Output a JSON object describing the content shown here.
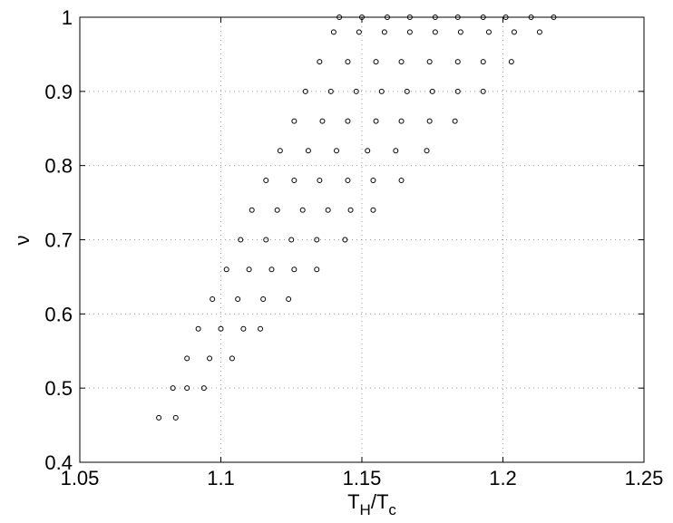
{
  "chart_data": {
    "type": "scatter",
    "xlabel": [
      "T",
      "H",
      "/T",
      "c"
    ],
    "ylabel": "ν",
    "xlim": [
      1.05,
      1.25
    ],
    "ylim": [
      0.4,
      1
    ],
    "xticks": [
      1.05,
      1.1,
      1.15,
      1.2,
      1.25
    ],
    "yticks": [
      0.4,
      0.5,
      0.6,
      0.7,
      0.8,
      0.9,
      1
    ],
    "grid": true,
    "color": "#000000",
    "x": [
      1.078,
      1.084,
      1.083,
      1.088,
      1.094,
      1.088,
      1.096,
      1.104,
      1.092,
      1.1,
      1.108,
      1.114,
      1.097,
      1.106,
      1.115,
      1.124,
      1.102,
      1.11,
      1.118,
      1.126,
      1.134,
      1.107,
      1.116,
      1.125,
      1.134,
      1.144,
      1.111,
      1.12,
      1.129,
      1.138,
      1.146,
      1.154,
      1.116,
      1.126,
      1.135,
      1.145,
      1.154,
      1.164,
      1.121,
      1.131,
      1.141,
      1.152,
      1.162,
      1.173,
      1.126,
      1.136,
      1.145,
      1.155,
      1.164,
      1.174,
      1.183,
      1.13,
      1.139,
      1.148,
      1.157,
      1.166,
      1.175,
      1.184,
      1.193,
      1.135,
      1.145,
      1.155,
      1.164,
      1.174,
      1.184,
      1.193,
      1.203,
      1.14,
      1.149,
      1.158,
      1.167,
      1.176,
      1.185,
      1.195,
      1.204,
      1.213,
      1.142,
      1.15,
      1.159,
      1.167,
      1.176,
      1.184,
      1.193,
      1.201,
      1.21,
      1.218
    ],
    "values": [
      0.46,
      0.46,
      0.5,
      0.5,
      0.5,
      0.54,
      0.54,
      0.54,
      0.58,
      0.58,
      0.58,
      0.58,
      0.62,
      0.62,
      0.62,
      0.62,
      0.66,
      0.66,
      0.66,
      0.66,
      0.66,
      0.7,
      0.7,
      0.7,
      0.7,
      0.7,
      0.74,
      0.74,
      0.74,
      0.74,
      0.74,
      0.74,
      0.78,
      0.78,
      0.78,
      0.78,
      0.78,
      0.78,
      0.82,
      0.82,
      0.82,
      0.82,
      0.82,
      0.82,
      0.86,
      0.86,
      0.86,
      0.86,
      0.86,
      0.86,
      0.86,
      0.9,
      0.9,
      0.9,
      0.9,
      0.9,
      0.9,
      0.9,
      0.9,
      0.94,
      0.94,
      0.94,
      0.94,
      0.94,
      0.94,
      0.94,
      0.94,
      0.98,
      0.98,
      0.98,
      0.98,
      0.98,
      0.98,
      0.98,
      0.98,
      0.98,
      1,
      1,
      1,
      1,
      1,
      1,
      1,
      1,
      1,
      1
    ]
  }
}
